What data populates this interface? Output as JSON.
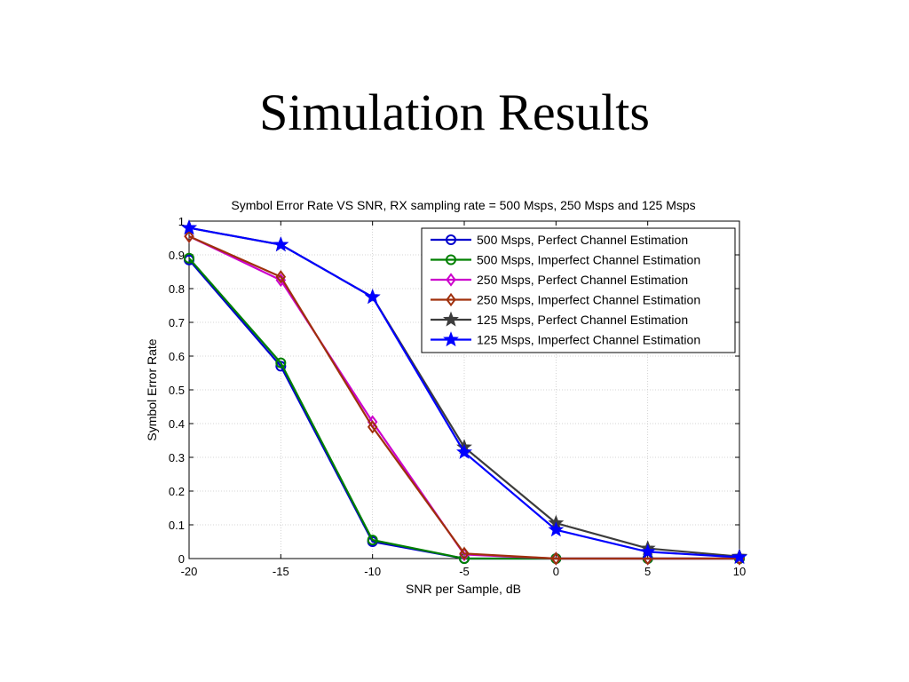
{
  "slide": {
    "title": "Simulation Results"
  },
  "chart_data": {
    "type": "line",
    "title": "Symbol Error Rate VS SNR, RX sampling rate = 500 Msps, 250 Msps and 125 Msps",
    "xlabel": "SNR per Sample, dB",
    "ylabel": "Symbol Error Rate",
    "x": [
      -20,
      -15,
      -10,
      -5,
      0,
      5,
      10
    ],
    "xlim": [
      -20,
      10
    ],
    "ylim": [
      0,
      1
    ],
    "xticks": [
      -20,
      -15,
      -10,
      -5,
      0,
      5,
      10
    ],
    "yticks": [
      0,
      0.1,
      0.2,
      0.3,
      0.4,
      0.5,
      0.6,
      0.7,
      0.8,
      0.9,
      1
    ],
    "grid": true,
    "legend_position": "top-right",
    "series": [
      {
        "name": "500 Msps, Perfect Channel Estimation",
        "color": "#0000cc",
        "marker": "circle",
        "values": [
          0.885,
          0.57,
          0.05,
          0.0,
          0.0,
          0.0,
          0.0
        ]
      },
      {
        "name": "500 Msps, Imperfect Channel Estimation",
        "color": "#008000",
        "marker": "circle",
        "values": [
          0.89,
          0.58,
          0.055,
          0.0,
          0.0,
          0.0,
          0.0
        ]
      },
      {
        "name": "250 Msps, Perfect Channel Estimation",
        "color": "#cc00cc",
        "marker": "diamond",
        "values": [
          0.955,
          0.825,
          0.405,
          0.012,
          0.0,
          0.0,
          0.0
        ]
      },
      {
        "name": "250 Msps, Imperfect Channel Estimation",
        "color": "#a0300c",
        "marker": "diamond",
        "values": [
          0.955,
          0.835,
          0.39,
          0.015,
          0.0,
          0.0,
          0.0
        ]
      },
      {
        "name": "125 Msps, Perfect Channel Estimation",
        "color": "#3c3c3c",
        "marker": "star",
        "values": [
          0.98,
          0.93,
          0.775,
          0.33,
          0.105,
          0.03,
          0.006
        ]
      },
      {
        "name": "125 Msps, Imperfect Channel Estimation",
        "color": "#0000ff",
        "marker": "star",
        "values": [
          0.98,
          0.93,
          0.775,
          0.315,
          0.085,
          0.02,
          0.004
        ]
      }
    ]
  }
}
